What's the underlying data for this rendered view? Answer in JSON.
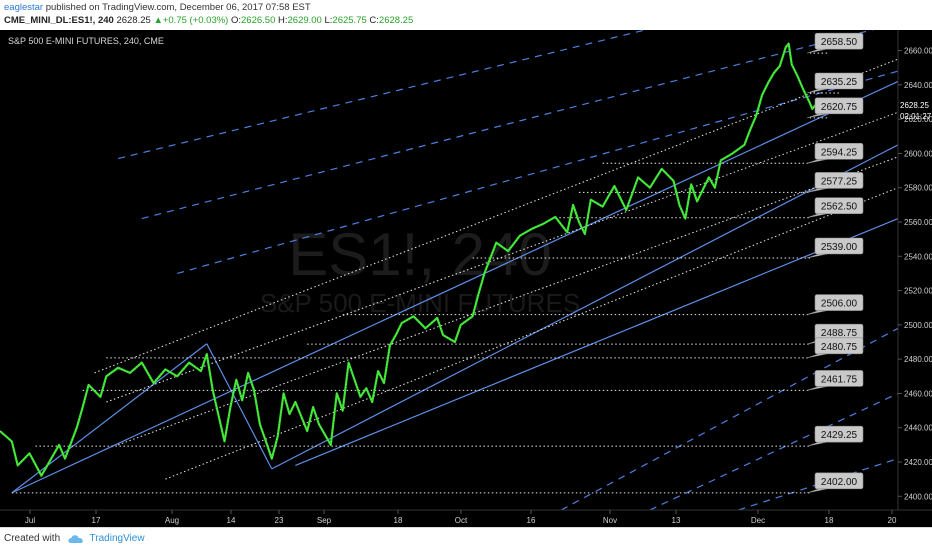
{
  "header": {
    "author": "eaglestar",
    "published_text": "published on TradingView.com, December 06, 2017 07:58 EST",
    "symbol": "CME_MINI_DL:ES1!, 240",
    "last": "2628.25",
    "change": "+0.75 (+0.03%)",
    "open_label": "O:",
    "open": "2626.50",
    "high_label": "H:",
    "high": "2629.00",
    "low_label": "L:",
    "low": "2625.75",
    "close_label": "C:",
    "close": "2628.25"
  },
  "footer": {
    "created_with": "Created with",
    "brand": "TradingView"
  },
  "colors": {
    "background": "#000000",
    "candles": "#39e02f",
    "channel": "#5d8ee6",
    "dashed": "#4d7fe0",
    "dotted": "#e8e8e8",
    "tag_fill": "#c9c9c9",
    "text": "#d0d0d0"
  },
  "chart_data": {
    "type": "line",
    "title": "S&P 500 E-MINI FUTURES, 240, CME",
    "watermark_symbol": "ES1!, 240",
    "watermark_name": "S&P 500 E-MINI FUTURES",
    "x_ticks": [
      "Jul",
      "17",
      "Aug",
      "14",
      "23",
      "Sep",
      "18",
      "Oct",
      "16",
      "Nov",
      "13",
      "Dec",
      "18",
      "20"
    ],
    "y_ticks": [
      "2400.00",
      "2420.00",
      "2440.00",
      "2460.00",
      "2480.00",
      "2500.00",
      "2520.00",
      "2540.00",
      "2560.00",
      "2580.00",
      "2600.00",
      "2620.00",
      "2640.00",
      "2660.00"
    ],
    "ylim": [
      2392,
      2672
    ],
    "x_days": [
      0,
      152
    ],
    "current_price_label": "2628.25",
    "countdown_label": "02:01:27",
    "level_labels": [
      {
        "label": "2658.50",
        "value": 2658.5,
        "start_day": 140
      },
      {
        "label": "2635.25",
        "value": 2635.25,
        "start_day": 142
      },
      {
        "label": "2620.75",
        "value": 2620.75,
        "start_day": 140
      },
      {
        "label": "2594.25",
        "value": 2594.25,
        "start_day": 102
      },
      {
        "label": "2577.25",
        "value": 2577.25,
        "start_day": 98
      },
      {
        "label": "2562.50",
        "value": 2562.5,
        "start_day": 94
      },
      {
        "label": "2539.00",
        "value": 2539.0,
        "start_day": 80
      },
      {
        "label": "2506.00",
        "value": 2506.0,
        "start_day": 58
      },
      {
        "label": "2488.75",
        "value": 2488.75,
        "start_day": 52
      },
      {
        "label": "2480.75",
        "value": 2480.75,
        "start_day": 18
      },
      {
        "label": "2461.75",
        "value": 2461.75,
        "start_day": 14
      },
      {
        "label": "2429.25",
        "value": 2429.25,
        "start_day": 6
      },
      {
        "label": "2402.00",
        "value": 2402.0,
        "start_day": 2
      }
    ],
    "channel_lines": [
      {
        "style": "solid",
        "from": [
          2,
          2402
        ],
        "to": [
          152,
          2642
        ]
      },
      {
        "style": "solid",
        "from": [
          46,
          2416
        ],
        "to": [
          152,
          2605
        ]
      },
      {
        "style": "solid",
        "from": [
          50,
          2418
        ],
        "to": [
          152,
          2562
        ]
      },
      {
        "style": "solid",
        "from": [
          2,
          2402
        ],
        "to": [
          35,
          2489
        ]
      },
      {
        "style": "solid",
        "from": [
          35,
          2489
        ],
        "to": [
          46,
          2416
        ]
      },
      {
        "style": "dashed",
        "from": [
          20,
          2597
        ],
        "to": [
          152,
          2708
        ]
      },
      {
        "style": "dashed",
        "from": [
          24,
          2562
        ],
        "to": [
          152,
          2676
        ]
      },
      {
        "style": "dashed",
        "from": [
          30,
          2530
        ],
        "to": [
          152,
          2648
        ]
      },
      {
        "style": "dashed",
        "from": [
          95,
          2392
        ],
        "to": [
          152,
          2498
        ]
      },
      {
        "style": "dashed",
        "from": [
          110,
          2392
        ],
        "to": [
          152,
          2460
        ]
      },
      {
        "style": "dashed",
        "from": [
          125,
          2392
        ],
        "to": [
          152,
          2422
        ]
      },
      {
        "style": "dotted",
        "from": [
          16,
          2472
        ],
        "to": [
          152,
          2655
        ]
      },
      {
        "style": "dotted",
        "from": [
          18,
          2455
        ],
        "to": [
          152,
          2624
        ]
      },
      {
        "style": "dotted",
        "from": [
          20,
          2430
        ],
        "to": [
          152,
          2598
        ]
      },
      {
        "style": "dotted",
        "from": [
          28,
          2410
        ],
        "to": [
          152,
          2580
        ]
      }
    ],
    "price_path": [
      [
        0,
        2438
      ],
      [
        2,
        2432
      ],
      [
        3,
        2418
      ],
      [
        5,
        2425
      ],
      [
        7,
        2412
      ],
      [
        8,
        2418
      ],
      [
        10,
        2430
      ],
      [
        11,
        2422
      ],
      [
        13,
        2440
      ],
      [
        14,
        2452
      ],
      [
        15,
        2465
      ],
      [
        17,
        2458
      ],
      [
        18,
        2470
      ],
      [
        20,
        2475
      ],
      [
        22,
        2472
      ],
      [
        24,
        2478
      ],
      [
        26,
        2466
      ],
      [
        28,
        2474
      ],
      [
        30,
        2470
      ],
      [
        32,
        2478
      ],
      [
        34,
        2473
      ],
      [
        35,
        2483
      ],
      [
        36,
        2462
      ],
      [
        38,
        2432
      ],
      [
        39,
        2452
      ],
      [
        40,
        2468
      ],
      [
        41,
        2456
      ],
      [
        42,
        2472
      ],
      [
        43,
        2462
      ],
      [
        44,
        2442
      ],
      [
        45,
        2432
      ],
      [
        46,
        2422
      ],
      [
        47,
        2435
      ],
      [
        48,
        2460
      ],
      [
        49,
        2448
      ],
      [
        50,
        2455
      ],
      [
        52,
        2438
      ],
      [
        53,
        2452
      ],
      [
        54,
        2442
      ],
      [
        56,
        2430
      ],
      [
        57,
        2460
      ],
      [
        58,
        2450
      ],
      [
        59,
        2478
      ],
      [
        60,
        2468
      ],
      [
        61,
        2458
      ],
      [
        62,
        2463
      ],
      [
        63,
        2455
      ],
      [
        64,
        2473
      ],
      [
        65,
        2466
      ],
      [
        66,
        2488
      ],
      [
        67,
        2494
      ],
      [
        68,
        2501
      ],
      [
        70,
        2505
      ],
      [
        72,
        2498
      ],
      [
        74,
        2504
      ],
      [
        75,
        2494
      ],
      [
        77,
        2490
      ],
      [
        78,
        2500
      ],
      [
        80,
        2505
      ],
      [
        81,
        2518
      ],
      [
        82,
        2530
      ],
      [
        84,
        2548
      ],
      [
        86,
        2543
      ],
      [
        88,
        2552
      ],
      [
        90,
        2556
      ],
      [
        92,
        2559
      ],
      [
        94,
        2563
      ],
      [
        96,
        2554
      ],
      [
        97,
        2570
      ],
      [
        98,
        2560
      ],
      [
        99,
        2553
      ],
      [
        100,
        2573
      ],
      [
        102,
        2569
      ],
      [
        104,
        2581
      ],
      [
        106,
        2567
      ],
      [
        108,
        2586
      ],
      [
        110,
        2580
      ],
      [
        112,
        2591
      ],
      [
        114,
        2584
      ],
      [
        115,
        2570
      ],
      [
        116,
        2562
      ],
      [
        117,
        2582
      ],
      [
        118,
        2572
      ],
      [
        120,
        2586
      ],
      [
        121,
        2580
      ],
      [
        122,
        2596
      ],
      [
        124,
        2600
      ],
      [
        126,
        2605
      ],
      [
        127,
        2614
      ],
      [
        128,
        2622
      ],
      [
        129,
        2634
      ],
      [
        130,
        2641
      ],
      [
        131,
        2647
      ],
      [
        132,
        2651
      ],
      [
        133,
        2662
      ],
      [
        133.5,
        2664
      ],
      [
        134,
        2652
      ],
      [
        135,
        2645
      ],
      [
        136,
        2637
      ],
      [
        137,
        2630
      ],
      [
        137.5,
        2626
      ],
      [
        138,
        2628.25
      ]
    ]
  }
}
